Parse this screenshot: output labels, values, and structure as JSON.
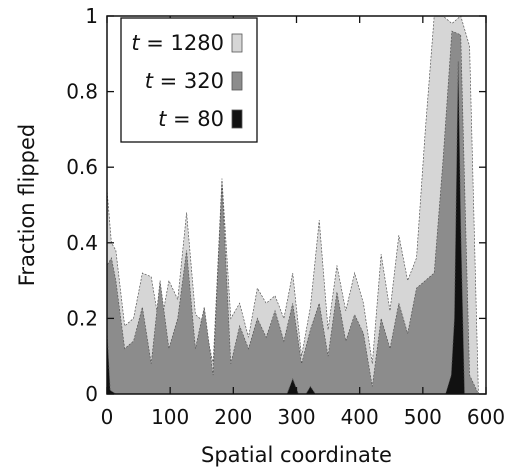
{
  "chart_data": {
    "type": "area",
    "xlabel": "Spatial coordinate",
    "ylabel": "Fraction flipped",
    "xlim": [
      0,
      600
    ],
    "ylim": [
      0,
      1
    ],
    "xticks": [
      0,
      100,
      200,
      300,
      400,
      500,
      600
    ],
    "yticks": [
      0,
      0.2,
      0.4,
      0.6,
      0.8,
      1
    ],
    "xtick_labels": [
      "0",
      "100",
      "200",
      "300",
      "400",
      "500",
      "600"
    ],
    "ytick_labels": [
      "0",
      "0.2",
      "0.4",
      "0.6",
      "0.8",
      "1"
    ],
    "grid": false,
    "legend_position": "top-left",
    "series": [
      {
        "name": "t = 1280",
        "legend_var": "t",
        "legend_value": "1280",
        "color": "#d6d6d6",
        "x": [
          0,
          7,
          14,
          28,
          42,
          56,
          70,
          84,
          98,
          112,
          126,
          140,
          154,
          168,
          182,
          196,
          210,
          224,
          238,
          252,
          266,
          280,
          294,
          308,
          322,
          336,
          350,
          364,
          378,
          392,
          406,
          420,
          434,
          448,
          462,
          476,
          490,
          504,
          518,
          532,
          546,
          560,
          574,
          588
        ],
        "y": [
          0.54,
          0.4,
          0.38,
          0.18,
          0.2,
          0.32,
          0.31,
          0.17,
          0.3,
          0.25,
          0.48,
          0.21,
          0.19,
          0.08,
          0.57,
          0.2,
          0.24,
          0.15,
          0.28,
          0.24,
          0.26,
          0.2,
          0.32,
          0.1,
          0.23,
          0.46,
          0.17,
          0.34,
          0.22,
          0.32,
          0.24,
          0.08,
          0.37,
          0.22,
          0.42,
          0.3,
          0.36,
          0.7,
          1.0,
          1.0,
          0.98,
          1.0,
          0.92,
          0.0
        ]
      },
      {
        "name": "t = 320",
        "legend_var": "t",
        "legend_value": "320",
        "color": "#8c8c8c",
        "x": [
          0,
          7,
          14,
          28,
          42,
          56,
          70,
          84,
          98,
          112,
          126,
          140,
          154,
          168,
          182,
          196,
          210,
          224,
          238,
          252,
          266,
          280,
          294,
          308,
          322,
          336,
          350,
          364,
          378,
          392,
          406,
          420,
          434,
          448,
          462,
          476,
          490,
          504,
          518,
          532,
          546,
          560,
          574,
          588
        ],
        "y": [
          0.34,
          0.36,
          0.3,
          0.12,
          0.14,
          0.23,
          0.08,
          0.3,
          0.12,
          0.2,
          0.38,
          0.12,
          0.23,
          0.05,
          0.56,
          0.08,
          0.18,
          0.12,
          0.2,
          0.15,
          0.22,
          0.14,
          0.24,
          0.08,
          0.17,
          0.24,
          0.1,
          0.27,
          0.14,
          0.21,
          0.16,
          0.02,
          0.2,
          0.12,
          0.24,
          0.16,
          0.28,
          0.3,
          0.32,
          0.62,
          0.96,
          0.95,
          0.05,
          0.0
        ]
      },
      {
        "name": "t = 80",
        "legend_var": "t",
        "legend_value": "80",
        "color": "#111111",
        "x": [
          0,
          5,
          14,
          285,
          294,
          303,
          315,
          322,
          330,
          536,
          545,
          550,
          556,
          560,
          566
        ],
        "y": [
          0.17,
          0.01,
          0.0,
          0.0,
          0.04,
          0.0,
          0.0,
          0.02,
          0.0,
          0.0,
          0.05,
          0.2,
          0.88,
          0.45,
          0.0
        ]
      }
    ]
  }
}
